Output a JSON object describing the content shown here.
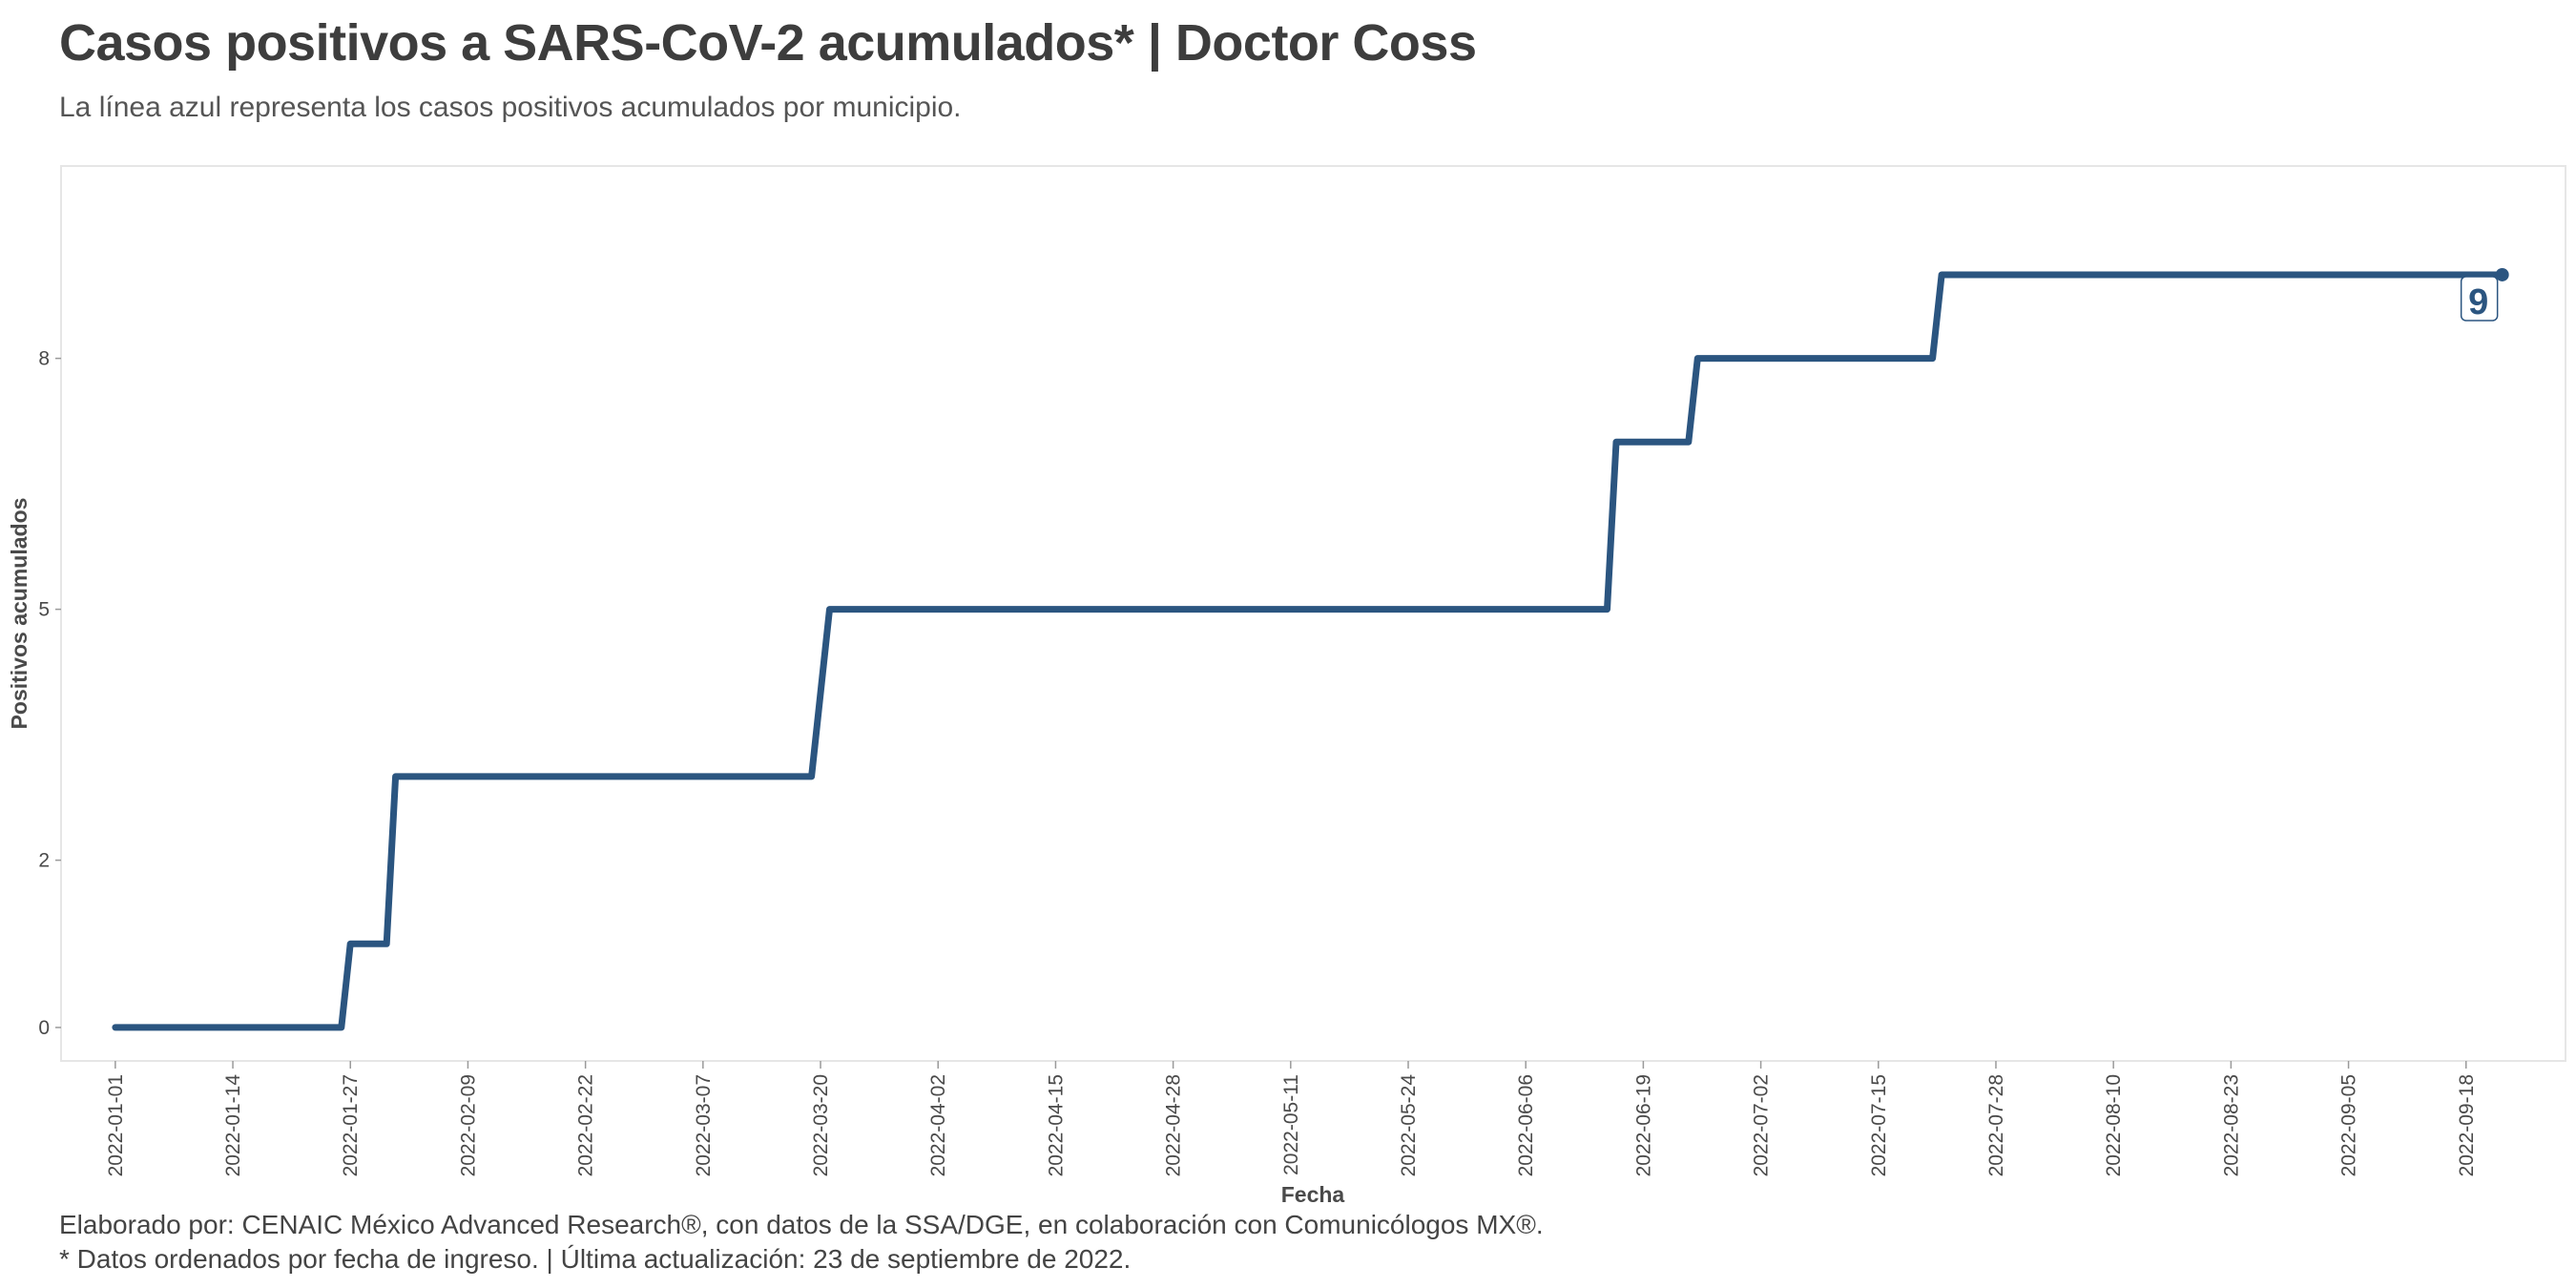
{
  "title": "Casos positivos a SARS-CoV-2 acumulados* | Doctor Coss",
  "subtitle": "La línea azul representa los casos positivos acumulados por municipio.",
  "caption_line1": "Elaborado por: CENAIC México Advanced Research®, con datos de la SSA/DGE, en colaboración con Comunicólogos MX®.",
  "caption_line2": "* Datos ordenados por fecha de ingreso. | Última actualización: 23 de septiembre de 2022.",
  "colors": {
    "line": "#2b5580",
    "panel_border": "#e6e6e6",
    "text": "#3d3d3d"
  },
  "chart_data": {
    "type": "line",
    "step": true,
    "xlabel": "Fecha",
    "ylabel": "Positivos acumulados",
    "x_ticks": [
      "2022-01-01",
      "2022-01-14",
      "2022-01-27",
      "2022-02-09",
      "2022-02-22",
      "2022-03-07",
      "2022-03-20",
      "2022-04-02",
      "2022-04-15",
      "2022-04-28",
      "2022-05-11",
      "2022-05-24",
      "2022-06-06",
      "2022-06-19",
      "2022-07-02",
      "2022-07-15",
      "2022-07-28",
      "2022-08-10",
      "2022-08-23",
      "2022-09-05",
      "2022-09-18"
    ],
    "y_ticks": [
      0,
      2,
      5,
      8
    ],
    "y_tick_labels": [
      "0",
      "2",
      "5",
      "8"
    ],
    "ylim": [
      -0.4,
      10.3
    ],
    "xlim": [
      "2021-12-26",
      "2022-09-29"
    ],
    "grid": false,
    "series": [
      {
        "points": [
          {
            "x": "2022-01-01",
            "y": 0
          },
          {
            "x": "2022-01-26",
            "y": 0
          },
          {
            "x": "2022-01-27",
            "y": 1
          },
          {
            "x": "2022-01-31",
            "y": 1
          },
          {
            "x": "2022-02-01",
            "y": 3
          },
          {
            "x": "2022-03-19",
            "y": 3
          },
          {
            "x": "2022-03-21",
            "y": 5
          },
          {
            "x": "2022-06-15",
            "y": 5
          },
          {
            "x": "2022-06-16",
            "y": 7
          },
          {
            "x": "2022-06-24",
            "y": 7
          },
          {
            "x": "2022-06-25",
            "y": 8
          },
          {
            "x": "2022-07-21",
            "y": 8
          },
          {
            "x": "2022-07-22",
            "y": 9
          },
          {
            "x": "2022-09-22",
            "y": 9
          }
        ]
      }
    ],
    "end_label": "9"
  }
}
